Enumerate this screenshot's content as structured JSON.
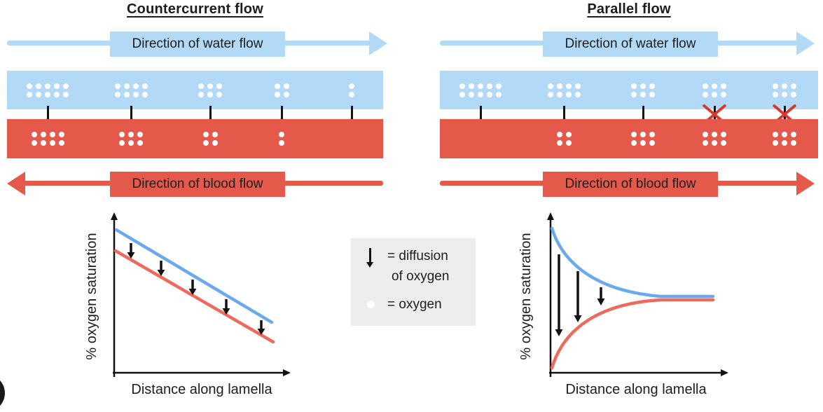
{
  "colors": {
    "light_blue": "#b2daf7",
    "red": "#e5594b",
    "blue_line": "#69a9ec",
    "red_line": "#ef6a5c",
    "ink": "#1d1d1d",
    "legend_bg": "#ededed",
    "cross_red": "#d8382b"
  },
  "panels": {
    "countercurrent": {
      "title": "Countercurrent flow",
      "water_label": "Direction of water flow",
      "blood_label": "Direction of blood flow",
      "water_flow_direction": "right",
      "blood_flow_direction": "left",
      "water_dot_columns": [
        5,
        4,
        3,
        2,
        1
      ],
      "blood_dot_columns": [
        4,
        3,
        2,
        1,
        0
      ],
      "blocked_diffusion": [
        false,
        false,
        false,
        false,
        false
      ]
    },
    "parallel": {
      "title": "Parallel flow",
      "water_label": "Direction of water flow",
      "blood_label": "Direction of blood flow",
      "water_flow_direction": "right",
      "blood_flow_direction": "right",
      "water_dot_columns": [
        5,
        4,
        3,
        3,
        3
      ],
      "blood_dot_columns": [
        0,
        2,
        3,
        3,
        3
      ],
      "blocked_diffusion": [
        false,
        false,
        false,
        true,
        true
      ]
    }
  },
  "graphs": {
    "countercurrent": {
      "ylabel": "% oxygen saturation",
      "xlabel": "Distance along lamella"
    },
    "parallel": {
      "ylabel": "% oxygen saturation",
      "xlabel": "Distance along lamella"
    }
  },
  "legend": {
    "arrow_meaning_line1": "= diffusion",
    "arrow_meaning_line2": "of oxygen",
    "dot_meaning": "= oxygen"
  },
  "chart_data": [
    {
      "type": "line",
      "title": "Countercurrent flow",
      "xlabel": "Distance along lamella",
      "ylabel": "% oxygen saturation",
      "axes_numeric": false,
      "x": [
        0,
        1,
        2,
        3,
        4,
        5
      ],
      "series": [
        {
          "name": "water",
          "color": "#69a9ec",
          "values": [
            95,
            83,
            71,
            59,
            47,
            35
          ]
        },
        {
          "name": "blood",
          "color": "#ef6a5c",
          "values": [
            82,
            70,
            58,
            46,
            34,
            22
          ]
        }
      ],
      "annotations": "Two parallel straight declining lines; 5 downward diffusion arrows of equal length between them (concentration gradient maintained along whole lamella)"
    },
    {
      "type": "line",
      "title": "Parallel flow",
      "xlabel": "Distance along lamella",
      "ylabel": "% oxygen saturation",
      "axes_numeric": false,
      "x": [
        0,
        1,
        2,
        3,
        4,
        5
      ],
      "series": [
        {
          "name": "water",
          "color": "#69a9ec",
          "values": [
            95,
            72,
            58,
            52,
            50,
            50
          ]
        },
        {
          "name": "blood",
          "color": "#ef6a5c",
          "values": [
            8,
            32,
            45,
            49,
            50,
            50
          ]
        }
      ],
      "annotations": "Curves converge exponentially to equilibrium (~50%); 3 downward diffusion arrows of decreasing length until no net diffusion"
    }
  ]
}
